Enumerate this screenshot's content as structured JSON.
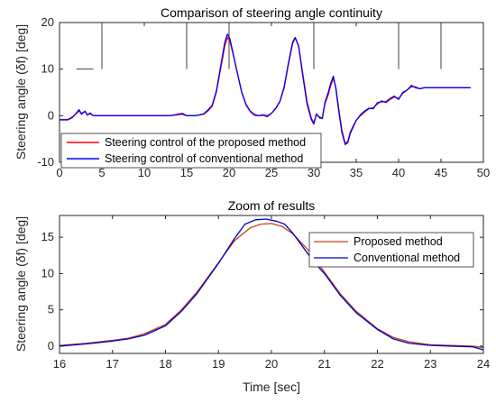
{
  "chart_data": [
    {
      "type": "line",
      "title": "Comparison of steering angle continuity",
      "xlabel": "",
      "ylabel": "Steering angle (δf) [deg]",
      "xlim": [
        0,
        50
      ],
      "ylim": [
        -10,
        20
      ],
      "xticks": [
        "0",
        "5",
        "10",
        "15",
        "20",
        "25",
        "30",
        "35",
        "40",
        "45",
        "50"
      ],
      "yticks": [
        "-10",
        "0",
        "10",
        "20"
      ],
      "legend_position": "bottom-left",
      "vertical_markers": [
        5,
        15,
        20,
        30,
        40,
        45
      ],
      "horizontal_marker": {
        "x": [
          2,
          4
        ],
        "y": 10
      },
      "series": [
        {
          "name": "Steering control of the proposed method",
          "color": "#ff0000",
          "x": [
            0,
            1,
            1.5,
            2,
            2.3,
            2.6,
            3,
            3.3,
            3.6,
            4,
            5,
            6,
            8,
            10,
            13,
            14.5,
            15,
            16,
            17,
            17.5,
            18,
            18.5,
            19,
            19.5,
            19.8,
            20.1,
            20.5,
            21,
            21.5,
            22,
            22.5,
            23,
            23.5,
            24,
            24.5,
            25,
            25.5,
            26,
            26.5,
            27,
            27.5,
            27.8,
            28.2,
            28.7,
            29.2,
            29.7,
            30,
            30.3,
            30.7,
            31,
            31.3,
            31.7,
            32,
            32.3,
            32.6,
            32.9,
            33.3,
            33.7,
            34,
            34.3,
            34.7,
            35,
            35.5,
            36,
            36.5,
            37,
            37.5,
            38,
            38.5,
            39,
            39.5,
            40,
            40.5,
            41,
            41.5,
            42,
            42.5,
            43,
            44,
            45,
            46,
            47,
            48.5
          ],
          "values": [
            -0.8,
            -0.8,
            -0.3,
            0.5,
            1.0,
            0.5,
            0.9,
            0.2,
            0.4,
            0,
            0,
            0,
            0,
            0,
            0,
            0.3,
            0,
            0,
            0.3,
            1.0,
            2.0,
            5.0,
            10.0,
            15.0,
            16.8,
            16.0,
            13.0,
            9.0,
            5.0,
            2.5,
            1.0,
            0.3,
            0,
            0.2,
            0,
            0.5,
            1.5,
            3.0,
            6.0,
            11.0,
            15.5,
            16.7,
            15.0,
            9.0,
            3.0,
            -0.5,
            -1.5,
            0.2,
            -0.3,
            -0.5,
            2.5,
            4.5,
            6.5,
            8.0,
            6.0,
            2.0,
            -3.0,
            -6.0,
            -5.5,
            -3.5,
            -2.0,
            -1.0,
            0,
            0.8,
            1.5,
            1.7,
            2.5,
            3.2,
            2.8,
            3.5,
            4.0,
            3.7,
            4.8,
            5.5,
            6.2,
            6.2,
            5.8,
            6.0,
            6.0,
            6.0,
            6.0,
            6.0,
            6.0
          ]
        },
        {
          "name": "Steering control of conventional method",
          "color": "#0000ff",
          "x": [
            0,
            1,
            1.5,
            2,
            2.3,
            2.6,
            3,
            3.3,
            3.6,
            4,
            5,
            6,
            8,
            10,
            13,
            14.5,
            15,
            16,
            17,
            17.5,
            18,
            18.5,
            19,
            19.5,
            19.8,
            20.1,
            20.5,
            21,
            21.5,
            22,
            22.5,
            23,
            23.5,
            24,
            24.5,
            25,
            25.5,
            26,
            26.5,
            27,
            27.5,
            27.8,
            28.2,
            28.7,
            29.2,
            29.7,
            30,
            30.3,
            30.7,
            31,
            31.3,
            31.7,
            32,
            32.3,
            32.6,
            32.9,
            33.3,
            33.7,
            34,
            34.3,
            34.7,
            35,
            35.5,
            36,
            36.5,
            37,
            37.5,
            38,
            38.5,
            39,
            39.5,
            40,
            40.5,
            41,
            41.5,
            42,
            42.5,
            43,
            44,
            45,
            46,
            47,
            48.5
          ],
          "values": [
            -0.9,
            -0.9,
            -0.4,
            0.6,
            1.3,
            0.3,
            1.0,
            0.1,
            0.6,
            0,
            0,
            0,
            0,
            0,
            0,
            0.5,
            0,
            0,
            0.4,
            1.2,
            2.2,
            5.3,
            10.5,
            15.8,
            17.5,
            16.5,
            13.2,
            9.0,
            5.0,
            2.3,
            0.9,
            0.1,
            0,
            0.1,
            -0.2,
            0.5,
            1.6,
            3.1,
            6.2,
            11.3,
            15.8,
            16.8,
            15.0,
            8.5,
            2.5,
            -0.8,
            -1.8,
            0.4,
            -0.5,
            -0.6,
            2.8,
            5.0,
            7.0,
            8.5,
            5.8,
            1.5,
            -3.5,
            -6.2,
            -5.8,
            -3.8,
            -2.2,
            -1.0,
            0.2,
            1.0,
            1.6,
            1.5,
            2.8,
            3.0,
            3.0,
            3.7,
            4.2,
            3.5,
            5.0,
            5.5,
            6.5,
            6.0,
            5.8,
            6.0,
            6.0,
            6.0,
            6.0,
            6.0,
            6.0
          ]
        }
      ]
    },
    {
      "type": "line",
      "title": "Zoom of results",
      "xlabel": "Time [sec]",
      "ylabel": "Steering angle (δf) [deg]",
      "xlim": [
        16,
        24
      ],
      "ylim": [
        -1,
        18
      ],
      "xticks": [
        "16",
        "17",
        "18",
        "19",
        "20",
        "21",
        "22",
        "23",
        "24"
      ],
      "yticks": [
        "0",
        "5",
        "10",
        "15"
      ],
      "legend_position": "top-right",
      "series": [
        {
          "name": "Proposed method",
          "color": "#c0441a",
          "x": [
            16,
            16.5,
            17,
            17.3,
            17.6,
            18,
            18.3,
            18.6,
            19,
            19.3,
            19.6,
            19.8,
            20,
            20.2,
            20.4,
            20.7,
            21,
            21.3,
            21.6,
            22,
            22.3,
            22.6,
            23,
            23.4,
            23.8,
            24
          ],
          "values": [
            0.1,
            0.4,
            0.8,
            1.1,
            1.7,
            3.0,
            5.0,
            7.5,
            11.5,
            14.5,
            16.3,
            16.8,
            16.9,
            16.5,
            15.5,
            13.2,
            10.2,
            7.2,
            4.8,
            2.4,
            1.2,
            0.6,
            0.2,
            0.1,
            0,
            -0.2
          ]
        },
        {
          "name": "Conventional method",
          "color": "#0000cc",
          "x": [
            16,
            16.5,
            17,
            17.3,
            17.6,
            18,
            18.3,
            18.6,
            19,
            19.3,
            19.5,
            19.7,
            19.9,
            20.1,
            20.25,
            20.4,
            20.6,
            20.8,
            21,
            21.3,
            21.6,
            22,
            22.3,
            22.6,
            23,
            23.4,
            23.8,
            24
          ],
          "values": [
            0.0,
            0.3,
            0.7,
            1.0,
            1.5,
            2.8,
            4.8,
            7.3,
            11.4,
            14.8,
            16.8,
            17.4,
            17.5,
            17.2,
            16.8,
            15.6,
            13.6,
            11.6,
            10.0,
            7.0,
            4.6,
            2.3,
            1.0,
            0.4,
            0.1,
            0.0,
            -0.1,
            -0.5
          ]
        }
      ]
    }
  ]
}
